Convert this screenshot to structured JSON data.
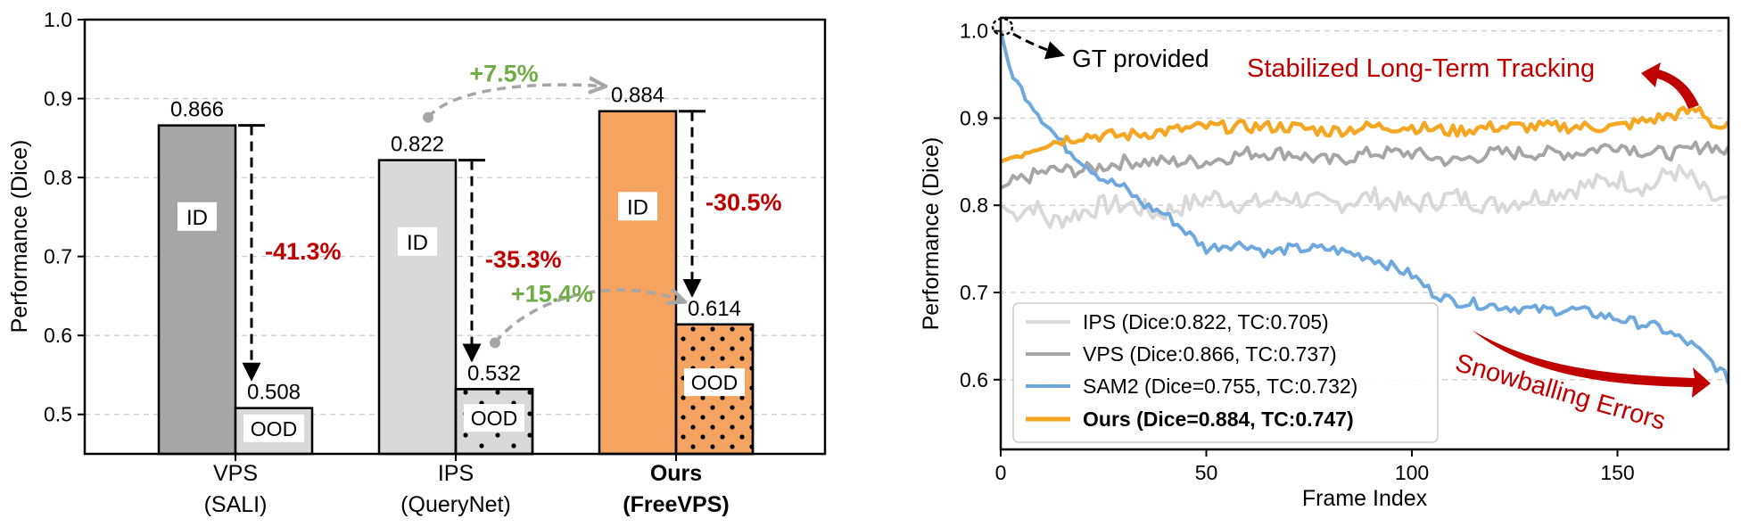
{
  "chart_data": [
    {
      "type": "bar",
      "ylabel": "Performance (Dice)",
      "ylim": [
        0.45,
        1.0
      ],
      "yticks": [
        "0.5",
        "0.6",
        "0.7",
        "0.8",
        "0.9",
        "1.0"
      ],
      "grid": true,
      "groups": [
        {
          "name_line1": "VPS",
          "name_line2": "(SALI)",
          "bold": false,
          "id_value": 0.866,
          "ood_value": 0.508,
          "id_label": "0.866",
          "ood_label": "0.508",
          "drop": "-41.3%",
          "id_color": "#a6a6a6",
          "ood_color": "#d9d9d9",
          "ood_pattern": "none"
        },
        {
          "name_line1": "IPS",
          "name_line2": "(QueryNet)",
          "bold": false,
          "id_value": 0.822,
          "ood_value": 0.532,
          "id_label": "0.822",
          "ood_label": "0.532",
          "drop": "-35.3%",
          "id_color": "#d9d9d9",
          "ood_color": "#d9d9d9",
          "ood_pattern": "sparse"
        },
        {
          "name_line1": "Ours",
          "name_line2": "(FreeVPS)",
          "bold": true,
          "id_value": 0.884,
          "ood_value": 0.614,
          "id_label": "0.884",
          "ood_label": "0.614",
          "drop": "-30.5%",
          "id_color": "#f4a460",
          "ood_color": "#f4a460",
          "ood_pattern": "dense"
        }
      ],
      "bar_text": {
        "id": "ID",
        "ood": "OOD"
      },
      "gains": [
        {
          "label": "+7.5%",
          "from": "IPS ID",
          "to": "Ours ID"
        },
        {
          "label": "+15.4%",
          "from": "IPS OOD",
          "to": "Ours OOD"
        }
      ],
      "colors": {
        "drop": "#c00000",
        "gain": "#70ad47",
        "gain_arrow": "#a6a6a6"
      }
    },
    {
      "type": "line",
      "xlabel": "Frame Index",
      "ylabel": "Performance (Dice)",
      "xlim": [
        0,
        177
      ],
      "ylim": [
        0.52,
        1.015
      ],
      "xticks": [
        "0",
        "50",
        "100",
        "150"
      ],
      "yticks": [
        "0.6",
        "0.7",
        "0.8",
        "0.9",
        "1.0"
      ],
      "grid": true,
      "series": [
        {
          "name": "IPS",
          "legend": "IPS (Dice:0.822, TC:0.705)",
          "color": "#d9d9d9",
          "bold": false,
          "anchors": [
            [
              0,
              0.8
            ],
            [
              3,
              0.79
            ],
            [
              8,
              0.8
            ],
            [
              12,
              0.78
            ],
            [
              18,
              0.79
            ],
            [
              25,
              0.8
            ],
            [
              32,
              0.8
            ],
            [
              38,
              0.79
            ],
            [
              45,
              0.8
            ],
            [
              52,
              0.81
            ],
            [
              60,
              0.8
            ],
            [
              70,
              0.81
            ],
            [
              80,
              0.8
            ],
            [
              90,
              0.81
            ],
            [
              100,
              0.8
            ],
            [
              110,
              0.81
            ],
            [
              120,
              0.8
            ],
            [
              130,
              0.81
            ],
            [
              140,
              0.82
            ],
            [
              150,
              0.83
            ],
            [
              158,
              0.82
            ],
            [
              163,
              0.84
            ],
            [
              168,
              0.83
            ],
            [
              172,
              0.81
            ],
            [
              177,
              0.8
            ]
          ],
          "noise": 0.012
        },
        {
          "name": "VPS",
          "legend": "VPS (Dice:0.866, TC:0.737)",
          "color": "#a6a6a6",
          "bold": false,
          "anchors": [
            [
              0,
              0.82
            ],
            [
              5,
              0.83
            ],
            [
              12,
              0.84
            ],
            [
              20,
              0.84
            ],
            [
              30,
              0.85
            ],
            [
              40,
              0.85
            ],
            [
              50,
              0.85
            ],
            [
              60,
              0.86
            ],
            [
              70,
              0.86
            ],
            [
              80,
              0.85
            ],
            [
              90,
              0.86
            ],
            [
              100,
              0.86
            ],
            [
              110,
              0.85
            ],
            [
              120,
              0.86
            ],
            [
              130,
              0.86
            ],
            [
              140,
              0.86
            ],
            [
              150,
              0.87
            ],
            [
              158,
              0.86
            ],
            [
              165,
              0.86
            ],
            [
              172,
              0.87
            ],
            [
              177,
              0.86
            ]
          ],
          "noise": 0.008
        },
        {
          "name": "SAM2",
          "legend": "SAM2 (Dice=0.755, TC:0.732)",
          "color": "#6fa8dc",
          "bold": false,
          "anchors": [
            [
              0,
              1.0
            ],
            [
              2,
              0.96
            ],
            [
              4,
              0.94
            ],
            [
              7,
              0.92
            ],
            [
              10,
              0.9
            ],
            [
              15,
              0.87
            ],
            [
              20,
              0.85
            ],
            [
              25,
              0.83
            ],
            [
              30,
              0.82
            ],
            [
              35,
              0.8
            ],
            [
              40,
              0.79
            ],
            [
              45,
              0.77
            ],
            [
              50,
              0.75
            ],
            [
              55,
              0.755
            ],
            [
              60,
              0.755
            ],
            [
              65,
              0.745
            ],
            [
              70,
              0.75
            ],
            [
              80,
              0.75
            ],
            [
              90,
              0.74
            ],
            [
              95,
              0.73
            ],
            [
              100,
              0.72
            ],
            [
              105,
              0.7
            ],
            [
              110,
              0.69
            ],
            [
              120,
              0.685
            ],
            [
              130,
              0.68
            ],
            [
              140,
              0.68
            ],
            [
              150,
              0.67
            ],
            [
              160,
              0.66
            ],
            [
              168,
              0.64
            ],
            [
              173,
              0.62
            ],
            [
              177,
              0.6
            ]
          ],
          "noise": 0.006
        },
        {
          "name": "Ours",
          "legend": "Ours (Dice=0.884, TC:0.747)",
          "color": "#f5a623",
          "bold": true,
          "anchors": [
            [
              0,
              0.85
            ],
            [
              5,
              0.86
            ],
            [
              10,
              0.87
            ],
            [
              20,
              0.88
            ],
            [
              30,
              0.88
            ],
            [
              40,
              0.885
            ],
            [
              50,
              0.89
            ],
            [
              60,
              0.89
            ],
            [
              70,
              0.89
            ],
            [
              80,
              0.885
            ],
            [
              90,
              0.89
            ],
            [
              100,
              0.89
            ],
            [
              110,
              0.885
            ],
            [
              120,
              0.89
            ],
            [
              130,
              0.89
            ],
            [
              140,
              0.89
            ],
            [
              150,
              0.89
            ],
            [
              160,
              0.9
            ],
            [
              165,
              0.905
            ],
            [
              170,
              0.91
            ],
            [
              174,
              0.89
            ],
            [
              177,
              0.89
            ]
          ],
          "noise": 0.007
        }
      ],
      "annotations": {
        "gt": "GT provided",
        "stabilized": "Stabilized Long-Term Tracking",
        "snowball": "Snowballing Errors"
      },
      "colors": {
        "annotation": "#c00000"
      }
    }
  ]
}
